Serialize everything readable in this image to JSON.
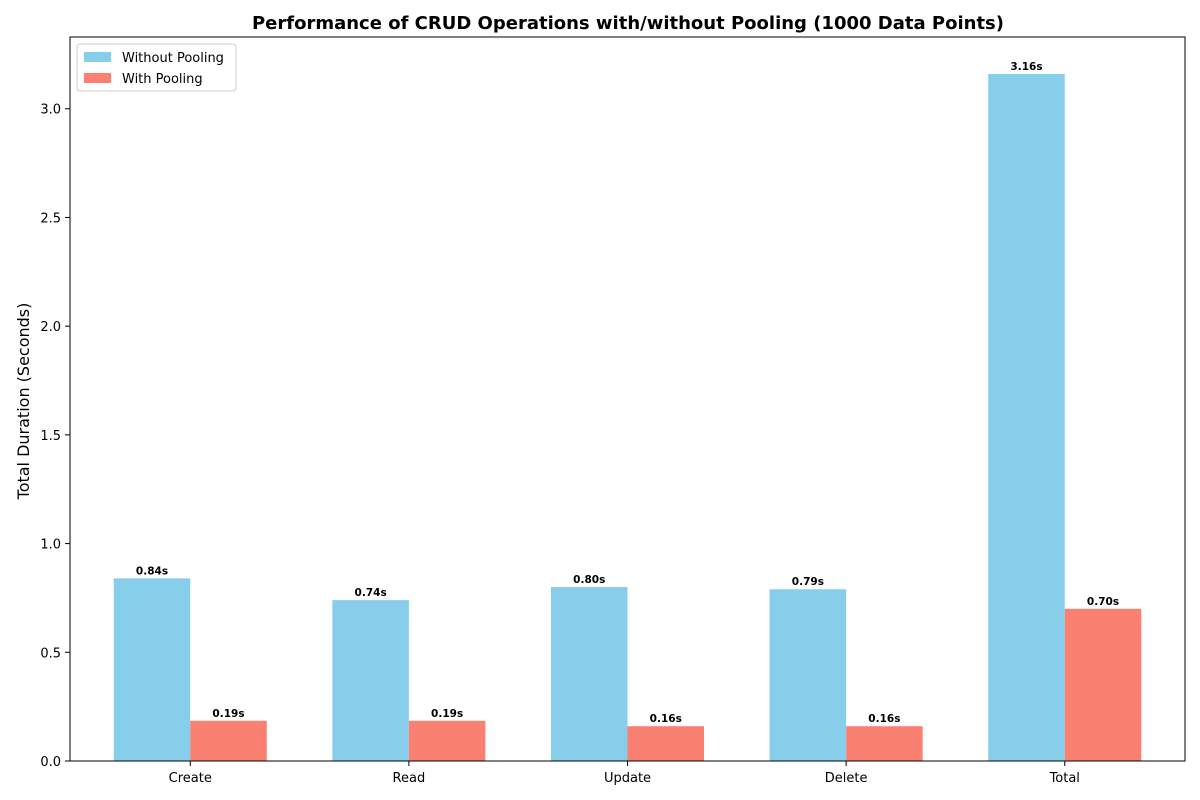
{
  "chart_data": {
    "type": "bar",
    "title": "Performance of CRUD Operations with/without Pooling (1000 Data Points)",
    "xlabel": "",
    "ylabel": "Total Duration (Seconds)",
    "categories": [
      "Create",
      "Read",
      "Update",
      "Delete",
      "Total"
    ],
    "series": [
      {
        "name": "Without Pooling",
        "color": "#87CEEB",
        "values": [
          0.84,
          0.74,
          0.8,
          0.79,
          3.16
        ],
        "labels": [
          "0.84s",
          "0.74s",
          "0.80s",
          "0.79s",
          "3.16s"
        ]
      },
      {
        "name": "With Pooling",
        "color": "#FA8072",
        "values": [
          0.185,
          0.185,
          0.16,
          0.16,
          0.7
        ],
        "labels": [
          "0.19s",
          "0.19s",
          "0.16s",
          "0.16s",
          "0.70s"
        ]
      }
    ],
    "ylim": [
      0,
      3.33
    ],
    "yticks": [
      0.0,
      0.5,
      1.0,
      1.5,
      2.0,
      2.5,
      3.0
    ],
    "ytick_labels": [
      "0.0",
      "0.5",
      "1.0",
      "1.5",
      "2.0",
      "2.5",
      "3.0"
    ],
    "grid": false,
    "legend_position": "top-left"
  }
}
